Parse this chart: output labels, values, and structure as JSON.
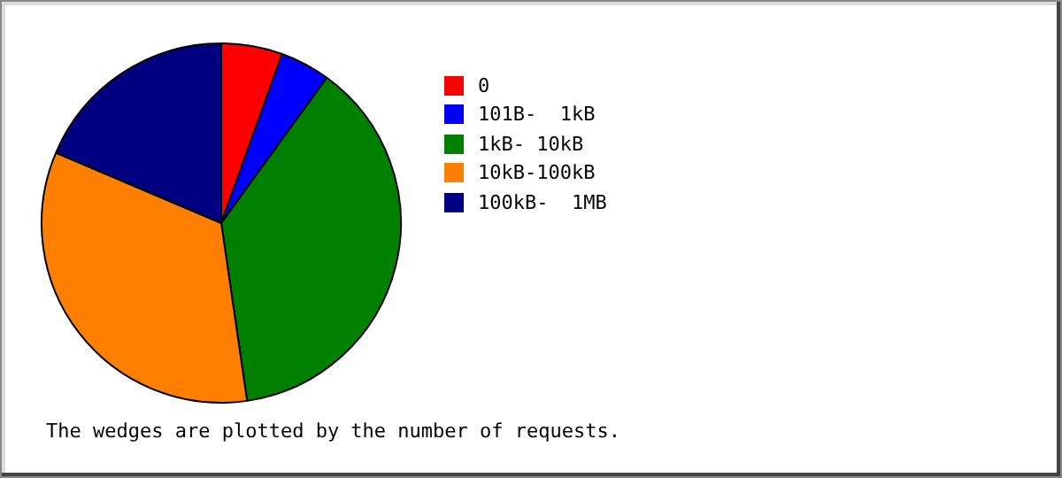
{
  "chart_data": {
    "type": "pie",
    "categories": [
      "0",
      "101B-  1kB",
      "1kB- 10kB",
      "10kB-100kB",
      "100kB-  1MB"
    ],
    "values": [
      5.5,
      4.5,
      37.7,
      33.7,
      18.6
    ],
    "colors": [
      "#ff0000",
      "#0000ff",
      "#008000",
      "#ff8000",
      "#000080"
    ],
    "legend": "right",
    "annotations": [
      "The wedges are plotted by the number of requests."
    ]
  }
}
